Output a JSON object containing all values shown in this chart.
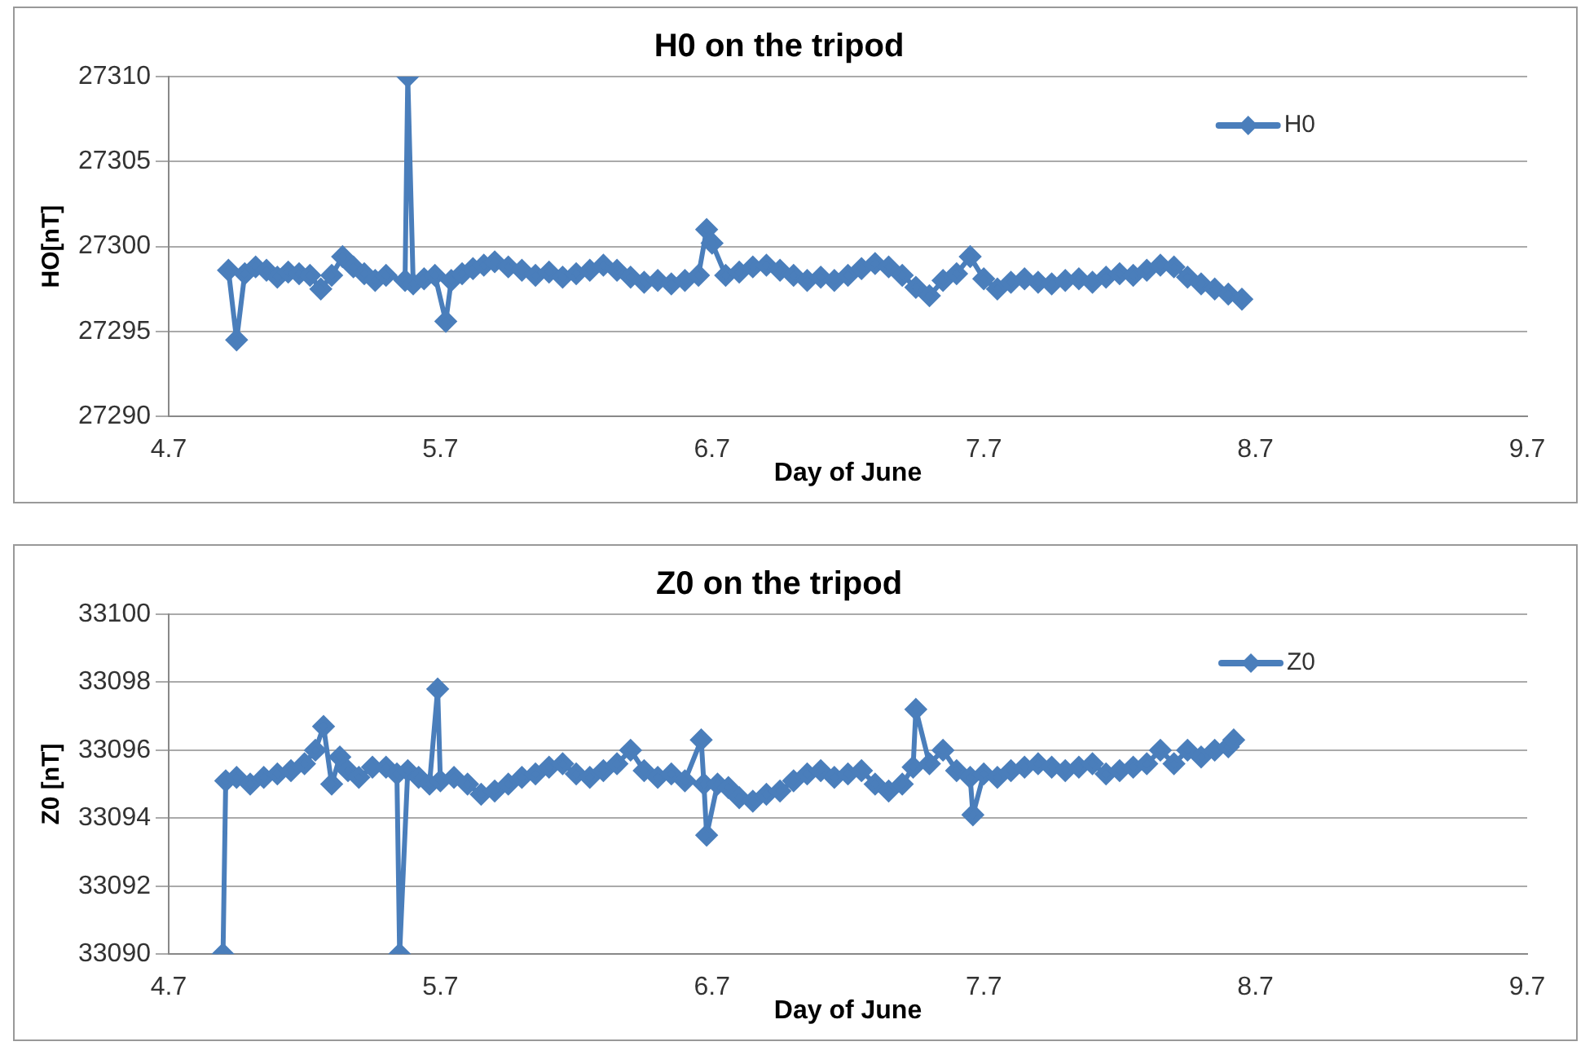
{
  "chart_data": [
    {
      "type": "line",
      "title": "H0 on the tripod",
      "xlabel": "Day of June",
      "ylabel": "HO[nT]",
      "xlim": [
        4.7,
        9.7
      ],
      "xticks": [
        4.7,
        5.7,
        6.7,
        7.7,
        8.7,
        9.7
      ],
      "ylim": [
        27290,
        27310
      ],
      "yticks": [
        27290,
        27295,
        27300,
        27305,
        27310
      ],
      "grid": "y",
      "legend": "top right",
      "marker": "diamond",
      "line_style": "solid",
      "series": [
        {
          "name": "H0",
          "color": "#4a7ebb",
          "x": [
            4.92,
            4.95,
            4.98,
            5.02,
            5.06,
            5.1,
            5.14,
            5.18,
            5.22,
            5.26,
            5.3,
            5.34,
            5.38,
            5.42,
            5.46,
            5.5,
            5.57,
            5.58,
            5.6,
            5.64,
            5.68,
            5.72,
            5.74,
            5.78,
            5.82,
            5.86,
            5.9,
            5.95,
            6.0,
            6.05,
            6.1,
            6.15,
            6.2,
            6.25,
            6.3,
            6.35,
            6.4,
            6.45,
            6.5,
            6.55,
            6.6,
            6.65,
            6.68,
            6.7,
            6.75,
            6.8,
            6.85,
            6.9,
            6.95,
            7.0,
            7.05,
            7.1,
            7.15,
            7.2,
            7.25,
            7.3,
            7.35,
            7.4,
            7.45,
            7.5,
            7.55,
            7.6,
            7.65,
            7.7,
            7.75,
            7.8,
            7.85,
            7.9,
            7.95,
            8.0,
            8.05,
            8.1,
            8.15,
            8.2,
            8.25,
            8.3,
            8.35,
            8.4,
            8.45,
            8.5,
            8.55,
            8.6,
            8.65
          ],
          "values": [
            27298.6,
            27294.5,
            27298.4,
            27298.8,
            27298.6,
            27298.2,
            27298.5,
            27298.4,
            27298.3,
            27297.5,
            27298.3,
            27299.4,
            27298.8,
            27298.4,
            27298.0,
            27298.3,
            27298.0,
            27310,
            27297.8,
            27298.1,
            27298.3,
            27295.6,
            27298.0,
            27298.4,
            27298.7,
            27298.9,
            27299.1,
            27298.8,
            27298.6,
            27298.3,
            27298.5,
            27298.2,
            27298.4,
            27298.6,
            27298.9,
            27298.6,
            27298.2,
            27297.9,
            27298.0,
            27297.8,
            27298.0,
            27298.3,
            27301.0,
            27300.2,
            27298.3,
            27298.5,
            27298.8,
            27298.9,
            27298.6,
            27298.3,
            27298.0,
            27298.2,
            27298.0,
            27298.3,
            27298.7,
            27299.0,
            27298.8,
            27298.3,
            27297.6,
            27297.1,
            27298.0,
            27298.4,
            27299.4,
            27298.1,
            27297.5,
            27297.9,
            27298.1,
            27297.9,
            27297.8,
            27298.0,
            27298.1,
            27297.9,
            27298.2,
            27298.4,
            27298.3,
            27298.6,
            27298.9,
            27298.8,
            27298.2,
            27297.8,
            27297.5,
            27297.2,
            27296.9
          ]
        }
      ]
    },
    {
      "type": "line",
      "title": "Z0 on the tripod",
      "xlabel": "Day of June",
      "ylabel": "Z0 [nT]",
      "xlim": [
        4.7,
        9.7
      ],
      "xticks": [
        4.7,
        5.7,
        6.7,
        7.7,
        8.7,
        9.7
      ],
      "ylim": [
        33090,
        33100
      ],
      "yticks": [
        33090,
        33092,
        33094,
        33096,
        33098,
        33100
      ],
      "grid": "y",
      "legend": "top right",
      "marker": "diamond",
      "line_style": "solid",
      "series": [
        {
          "name": "Z0",
          "color": "#4a7ebb",
          "x": [
            4.9,
            4.91,
            4.95,
            5.0,
            5.05,
            5.1,
            5.15,
            5.2,
            5.24,
            5.27,
            5.3,
            5.33,
            5.36,
            5.4,
            5.45,
            5.5,
            5.54,
            5.55,
            5.58,
            5.62,
            5.66,
            5.69,
            5.7,
            5.75,
            5.8,
            5.85,
            5.9,
            5.95,
            6.0,
            6.05,
            6.1,
            6.15,
            6.2,
            6.25,
            6.3,
            6.35,
            6.4,
            6.45,
            6.5,
            6.55,
            6.6,
            6.66,
            6.67,
            6.68,
            6.72,
            6.76,
            6.8,
            6.85,
            6.9,
            6.95,
            7.0,
            7.05,
            7.1,
            7.15,
            7.2,
            7.25,
            7.3,
            7.35,
            7.4,
            7.44,
            7.45,
            7.5,
            7.55,
            7.6,
            7.65,
            7.66,
            7.7,
            7.75,
            7.8,
            7.85,
            7.9,
            7.95,
            8.0,
            8.05,
            8.1,
            8.15,
            8.2,
            8.25,
            8.3,
            8.35,
            8.4,
            8.45,
            8.5,
            8.55,
            8.6,
            8.62
          ],
          "values": [
            33090,
            33095.1,
            33095.2,
            33095.0,
            33095.2,
            33095.3,
            33095.4,
            33095.6,
            33096.0,
            33096.7,
            33095.0,
            33095.8,
            33095.4,
            33095.2,
            33095.5,
            33095.5,
            33095.3,
            33090,
            33095.4,
            33095.2,
            33095.0,
            33097.8,
            33095.1,
            33095.2,
            33095.0,
            33094.7,
            33094.8,
            33095.0,
            33095.2,
            33095.3,
            33095.5,
            33095.6,
            33095.3,
            33095.2,
            33095.4,
            33095.6,
            33096.0,
            33095.4,
            33095.2,
            33095.3,
            33095.1,
            33096.3,
            33095.0,
            33093.5,
            33095.0,
            33094.9,
            33094.6,
            33094.5,
            33094.7,
            33094.8,
            33095.1,
            33095.3,
            33095.4,
            33095.2,
            33095.3,
            33095.4,
            33095.0,
            33094.8,
            33095.0,
            33095.5,
            33097.2,
            33095.6,
            33096.0,
            33095.4,
            33095.2,
            33094.1,
            33095.3,
            33095.2,
            33095.4,
            33095.5,
            33095.6,
            33095.5,
            33095.4,
            33095.5,
            33095.6,
            33095.3,
            33095.4,
            33095.5,
            33095.6,
            33096.0,
            33095.6,
            33096.0,
            33095.8,
            33096.0,
            33096.1,
            33096.3
          ]
        }
      ]
    }
  ]
}
